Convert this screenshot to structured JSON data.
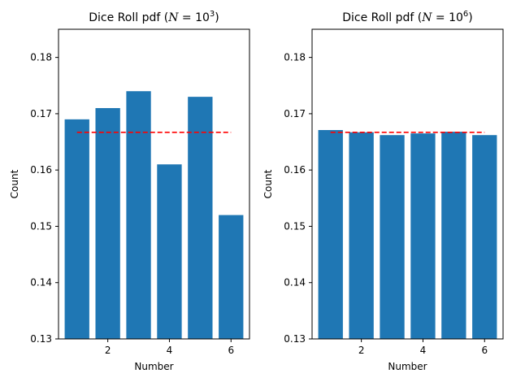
{
  "chart_data": [
    {
      "type": "bar",
      "title_prefix": "Dice Roll pdf (",
      "title_n": "N",
      "title_eq": " = 10",
      "title_exp": "3",
      "title_suffix": ")",
      "xlabel": "Number",
      "ylabel": "Count",
      "x": [
        1,
        2,
        3,
        4,
        5,
        6
      ],
      "values": [
        0.169,
        0.171,
        0.174,
        0.161,
        0.173,
        0.152
      ],
      "reference_line": {
        "value": 0.1667,
        "x_range": [
          1,
          6
        ],
        "style": "dashed",
        "color": "#ff0000"
      },
      "xlim": [
        0.4,
        6.6
      ],
      "ylim": [
        0.13,
        0.185
      ],
      "xticks": [
        2,
        4,
        6
      ],
      "yticks": [
        0.13,
        0.14,
        0.15,
        0.16,
        0.17,
        0.18
      ],
      "bar_color": "#1f77b4",
      "grid": false
    },
    {
      "type": "bar",
      "title_prefix": "Dice Roll pdf (",
      "title_n": "N",
      "title_eq": " = 10",
      "title_exp": "6",
      "title_suffix": ")",
      "xlabel": "Number",
      "ylabel": "Count",
      "x": [
        1,
        2,
        3,
        4,
        5,
        6
      ],
      "values": [
        0.1671,
        0.1667,
        0.1662,
        0.1665,
        0.1668,
        0.1662
      ],
      "reference_line": {
        "value": 0.1667,
        "x_range": [
          1,
          6
        ],
        "style": "dashed",
        "color": "#ff0000"
      },
      "xlim": [
        0.4,
        6.6
      ],
      "ylim": [
        0.13,
        0.185
      ],
      "xticks": [
        2,
        4,
        6
      ],
      "yticks": [
        0.13,
        0.14,
        0.15,
        0.16,
        0.17,
        0.18
      ],
      "bar_color": "#1f77b4",
      "grid": false
    }
  ]
}
